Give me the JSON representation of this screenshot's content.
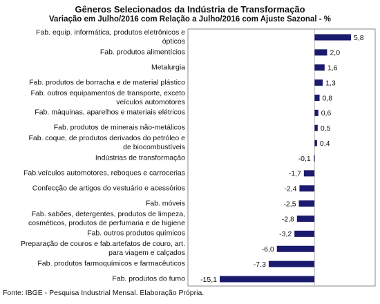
{
  "chart_data": {
    "type": "bar",
    "orientation": "horizontal",
    "title": "Gêneros Selecionados da Indústria de Transformação",
    "subtitle": "Variação em Julho/2016 com Relação a Julho/2016 com Ajuste Sazonal - %",
    "categories": [
      "Fab. equip. informática, produtos eletrônicos e ópticos",
      "Fab. produtos alimentícios",
      "Metalurgia",
      "Fab. produtos de borracha e de material plástico",
      "Fab. outros equipamentos de transporte, exceto veículos automotores",
      "Fab. máquinas, aparelhos e materiais elétricos",
      "Fab. produtos de minerais não-metálicos",
      "Fab. coque, de produtos derivados do petróleo e de biocombustíveis",
      "Indústrias de transformação",
      "Fab.veículos automotores, reboques e carrocerias",
      "Confecção de artigos do vestuário e acessórios",
      "Fab. móveis",
      "Fab. sabões, detergentes, produtos de limpeza, cosméticos, produtos de perfumaria e de higiene",
      "Fab. outros produtos químicos",
      "Preparação de couros e fab.artefatos de couro, art. para viagem e calçados",
      "Fab. produtos farmoquímicos e farmacêuticos",
      "Fab. produtos do fumo"
    ],
    "values": [
      5.8,
      2.0,
      1.6,
      1.3,
      0.8,
      0.6,
      0.5,
      0.4,
      -0.1,
      -1.7,
      -2.4,
      -2.5,
      -2.8,
      -3.2,
      -6.0,
      -7.3,
      -15.1
    ],
    "value_labels": [
      "5,8",
      "2,0",
      "1,6",
      "1,3",
      "0,8",
      "0,6",
      "0,5",
      "0,4",
      "-0,1",
      "-1,7",
      "-2,4",
      "-2,5",
      "-2,8",
      "-3,2",
      "-6,0",
      "-7,3",
      "-15,1"
    ],
    "color": "#1a1a6e",
    "source": "Fonte: IBGE - Pesquisa Industrial Mensal. Elaboração Própria."
  }
}
